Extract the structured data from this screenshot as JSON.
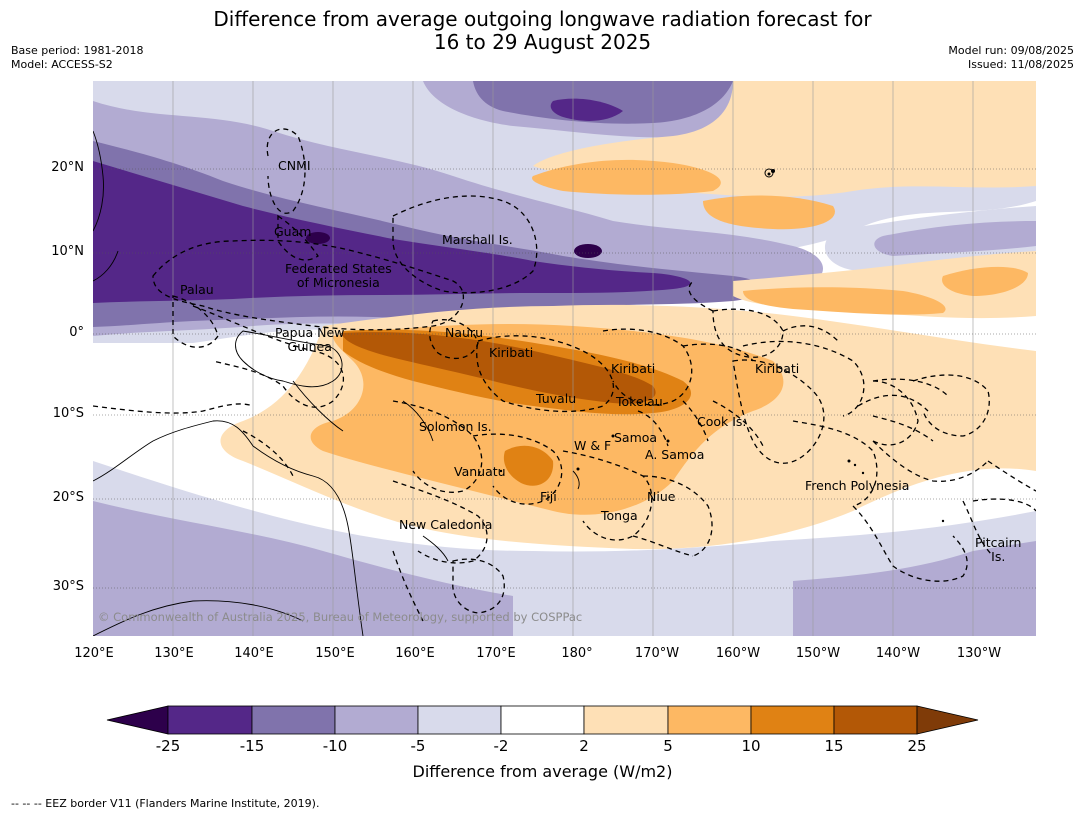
{
  "title": {
    "line1": "Difference from average outgoing longwave radiation forecast for",
    "line2": "16 to 29 August 2025"
  },
  "meta": {
    "base_period": "Base period: 1981-2018",
    "model": "Model: ACCESS-S2",
    "model_run": "Model run: 09/08/2025",
    "issued": "Issued: 11/08/2025"
  },
  "map": {
    "projection": "equirectangular",
    "lon_range": [
      120,
      238
    ],
    "lat_range": [
      -36,
      30
    ],
    "lat_labels": [
      "20°N",
      "10°N",
      "0°",
      "10°S",
      "20°S",
      "30°S"
    ],
    "lon_labels": [
      "120°E",
      "130°E",
      "140°E",
      "150°E",
      "160°E",
      "170°E",
      "180°",
      "170°W",
      "160°W",
      "150°W",
      "140°W",
      "130°W"
    ],
    "copyright": "© Commonwealth of Australia 2025, Bureau of Meteorology, supported by COSPPac",
    "eez_labels": [
      {
        "text": "CNMI"
      },
      {
        "text": "Guam"
      },
      {
        "text": "Marshall Is."
      },
      {
        "text": "Federated States\nof Micronesia"
      },
      {
        "text": "Palau"
      },
      {
        "text": "Papua New\nGuinea"
      },
      {
        "text": "Nauru"
      },
      {
        "text": "Kiribati"
      },
      {
        "text": "Kiribati"
      },
      {
        "text": "Kiribati"
      },
      {
        "text": "Tuvalu"
      },
      {
        "text": "Tokelau"
      },
      {
        "text": "Solomon Is."
      },
      {
        "text": "Cook Is."
      },
      {
        "text": "Samoa"
      },
      {
        "text": "W & F"
      },
      {
        "text": "A. Samoa"
      },
      {
        "text": "Vanuatu"
      },
      {
        "text": "Fiji"
      },
      {
        "text": "Niue"
      },
      {
        "text": "French Polynesia"
      },
      {
        "text": "Tonga"
      },
      {
        "text": "New Caledonia"
      },
      {
        "text": "Pitcairn\nIs."
      }
    ]
  },
  "colorbar": {
    "title": "Difference from average (W/m2)",
    "ticks": [
      "-25",
      "-15",
      "-10",
      "-5",
      "-2",
      "2",
      "5",
      "10",
      "15",
      "25"
    ],
    "colors": [
      "#2d004b",
      "#542788",
      "#8073ac",
      "#b2abd2",
      "#d8daeb",
      "#ffffff",
      "#fee0b6",
      "#fdb863",
      "#e08214",
      "#b35806",
      "#7f3b08"
    ]
  },
  "footnote": "--  --  -- EEZ border V11 (Flanders Marine Institute, 2019)."
}
